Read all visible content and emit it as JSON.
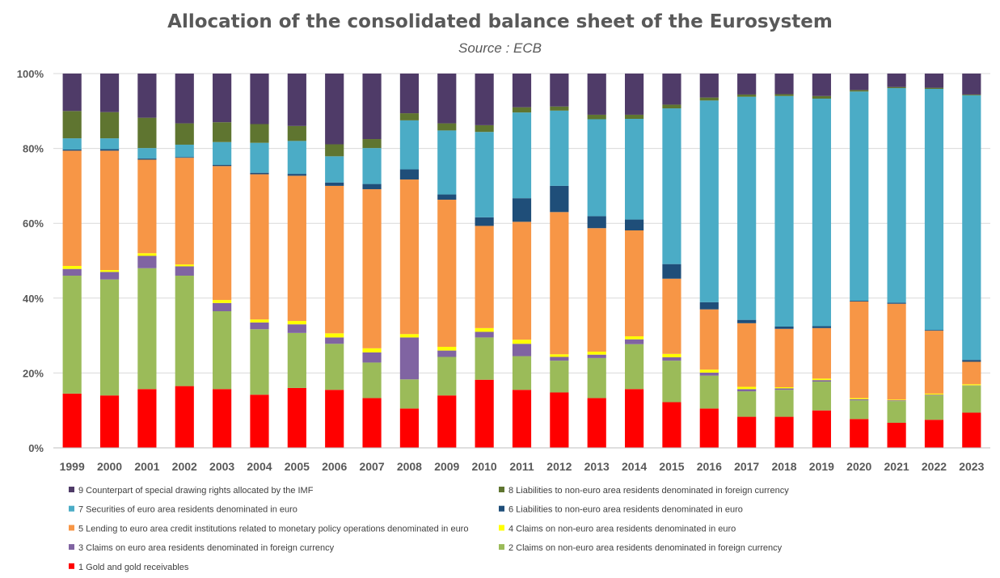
{
  "chart_data": {
    "type": "bar",
    "stacked": true,
    "normalized": true,
    "title": "Allocation of the consolidated balance sheet of the Eurosystem",
    "subtitle": "Source : ECB",
    "xlabel": "",
    "ylabel": "",
    "ylim": [
      0,
      100
    ],
    "yticks": [
      "0%",
      "20%",
      "40%",
      "60%",
      "80%",
      "100%"
    ],
    "grid": true,
    "legend_position": "bottom",
    "categories": [
      "1999",
      "2000",
      "2001",
      "2002",
      "2003",
      "2004",
      "2005",
      "2006",
      "2007",
      "2008",
      "2009",
      "2010",
      "2011",
      "2012",
      "2013",
      "2014",
      "2015",
      "2016",
      "2017",
      "2018",
      "2019",
      "2020",
      "2021",
      "2022",
      "2023"
    ],
    "series": [
      {
        "name": "1 Gold and gold receivables",
        "color": "#ff0000",
        "values": [
          14.5,
          14.0,
          15.7,
          16.5,
          15.7,
          14.2,
          16.0,
          15.5,
          13.3,
          10.5,
          14.0,
          18.2,
          15.5,
          14.8,
          13.3,
          15.7,
          12.2,
          10.5,
          8.3,
          8.3,
          10.0,
          7.7,
          6.7,
          7.5,
          9.4
        ]
      },
      {
        "name": "2 Claims on non-euro area residents denominated in foreign currency",
        "color": "#9bbb59",
        "values": [
          31.5,
          31.0,
          32.3,
          29.5,
          20.8,
          17.5,
          14.7,
          12.3,
          9.5,
          7.8,
          10.3,
          11.3,
          9.0,
          8.5,
          10.7,
          12.0,
          11.1,
          8.8,
          6.8,
          7.2,
          7.7,
          5.0,
          5.8,
          6.5,
          7.2
        ]
      },
      {
        "name": "3 Claims on euro area residents denominated in foreign currency",
        "color": "#8064a2",
        "values": [
          1.8,
          2.0,
          3.3,
          2.5,
          2.2,
          1.8,
          2.3,
          1.7,
          2.7,
          11.2,
          1.7,
          1.5,
          3.3,
          1.0,
          0.9,
          1.3,
          0.9,
          0.8,
          0.6,
          0.4,
          0.4,
          0.3,
          0.2,
          0.2,
          0.1
        ]
      },
      {
        "name": "4 Claims on non-euro area residents denominated in euro",
        "color": "#ffff00",
        "values": [
          0.8,
          0.5,
          0.7,
          0.5,
          0.8,
          0.8,
          0.9,
          1.1,
          1.1,
          0.9,
          1.0,
          1.0,
          1.1,
          0.7,
          0.8,
          0.8,
          0.9,
          0.8,
          0.6,
          0.3,
          0.4,
          0.3,
          0.2,
          0.3,
          0.3
        ]
      },
      {
        "name": "5 Lending to euro area credit institutions related to monetary policy operations denominated in euro",
        "color": "#f79646",
        "values": [
          30.8,
          31.9,
          25.0,
          28.5,
          35.8,
          38.8,
          38.8,
          39.4,
          42.5,
          41.3,
          39.3,
          27.3,
          31.5,
          38.0,
          33.0,
          28.3,
          20.1,
          16.1,
          17.0,
          15.6,
          13.5,
          25.8,
          25.6,
          16.8,
          6.0
        ]
      },
      {
        "name": "6 Liabilities to non-euro area residents denominated in euro",
        "color": "#1f4e79",
        "values": [
          0.3,
          0.4,
          0.3,
          0.2,
          0.3,
          0.4,
          0.5,
          0.9,
          1.4,
          2.7,
          1.4,
          2.3,
          6.3,
          7.0,
          3.2,
          2.9,
          3.9,
          1.9,
          0.9,
          0.6,
          0.5,
          0.2,
          0.3,
          0.2,
          0.5
        ]
      },
      {
        "name": "7 Securities of euro area residents denominated in euro",
        "color": "#4bacc6",
        "values": [
          3.0,
          2.9,
          2.8,
          3.3,
          6.1,
          8.0,
          8.8,
          7.0,
          9.6,
          13.1,
          17.1,
          22.8,
          22.9,
          20.1,
          25.9,
          26.9,
          41.6,
          53.9,
          59.6,
          61.6,
          60.8,
          55.9,
          57.3,
          64.4,
          70.7
        ]
      },
      {
        "name": "8 Liabilities to non-euro area residents denominated in foreign currency",
        "color": "#5f7530",
        "values": [
          7.3,
          7.0,
          8.1,
          5.7,
          5.3,
          5.0,
          4.0,
          3.2,
          2.4,
          1.9,
          1.9,
          1.8,
          1.4,
          1.1,
          1.2,
          1.1,
          1.0,
          0.8,
          0.6,
          0.5,
          0.7,
          0.4,
          0.3,
          0.3,
          0.2
        ]
      },
      {
        "name": "9 Counterpart of special drawing rights allocated by the IMF",
        "color": "#4f3b68",
        "values": [
          10.0,
          10.3,
          11.8,
          13.3,
          13.0,
          13.5,
          14.0,
          18.9,
          17.5,
          10.6,
          13.3,
          13.8,
          9.0,
          8.8,
          11.0,
          11.0,
          8.3,
          6.4,
          5.6,
          5.5,
          6.0,
          4.4,
          3.6,
          3.8,
          5.6
        ]
      }
    ]
  }
}
